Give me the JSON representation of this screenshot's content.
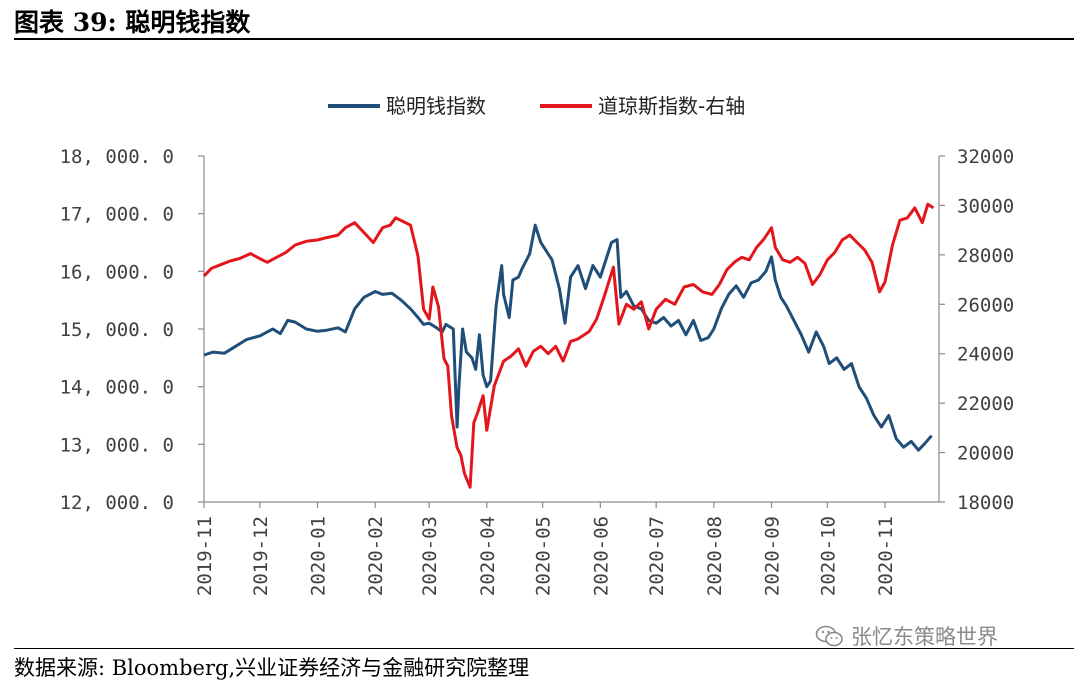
{
  "header": {
    "title": "图表 39:  聪明钱指数"
  },
  "footer": {
    "source": "数据来源:  Bloomberg,兴业证券经济与金融研究院整理",
    "watermark": "张忆东策略世界"
  },
  "colors": {
    "smart_money": "#1f4e79",
    "dow": "#e3161b",
    "axis": "#8c8c8c"
  },
  "chart_data": {
    "type": "line",
    "title": "",
    "legend_position": "top-center",
    "grid": false,
    "x_ticks": [
      "2019-11",
      "2019-12",
      "2020-01",
      "2020-02",
      "2020-03",
      "2020-04",
      "2020-05",
      "2020-06",
      "2020-07",
      "2020-08",
      "2020-09",
      "2020-10",
      "2020-11"
    ],
    "left_axis": {
      "ylim": [
        12000,
        18000
      ],
      "ticks": [
        12000,
        13000,
        14000,
        15000,
        16000,
        17000,
        18000
      ],
      "tick_labels": [
        "12, 000. 0",
        "13, 000. 0",
        "14, 000. 0",
        "15, 000. 0",
        "16, 000. 0",
        "17, 000. 0",
        "18, 000. 0"
      ]
    },
    "right_axis": {
      "ylim": [
        18000,
        32000
      ],
      "ticks": [
        18000,
        20000,
        22000,
        24000,
        26000,
        28000,
        30000,
        32000
      ],
      "tick_labels": [
        "18000",
        "20000",
        "22000",
        "24000",
        "26000",
        "28000",
        "30000",
        "32000"
      ]
    },
    "series": [
      {
        "name": "聪明钱指数",
        "axis": "left",
        "color": "#1f4e79",
        "points": [
          [
            "2019-11-01",
            14550
          ],
          [
            "2019-11-06",
            14600
          ],
          [
            "2019-11-12",
            14580
          ],
          [
            "2019-11-18",
            14700
          ],
          [
            "2019-11-24",
            14820
          ],
          [
            "2019-12-01",
            14880
          ],
          [
            "2019-12-08",
            15000
          ],
          [
            "2019-12-12",
            14920
          ],
          [
            "2019-12-16",
            15150
          ],
          [
            "2019-12-20",
            15120
          ],
          [
            "2019-12-26",
            15000
          ],
          [
            "2020-01-01",
            14960
          ],
          [
            "2020-01-06",
            14980
          ],
          [
            "2020-01-12",
            15020
          ],
          [
            "2020-01-16",
            14950
          ],
          [
            "2020-01-21",
            15350
          ],
          [
            "2020-01-26",
            15550
          ],
          [
            "2020-02-01",
            15650
          ],
          [
            "2020-02-05",
            15600
          ],
          [
            "2020-02-10",
            15620
          ],
          [
            "2020-02-15",
            15500
          ],
          [
            "2020-02-20",
            15350
          ],
          [
            "2020-02-24",
            15200
          ],
          [
            "2020-02-27",
            15080
          ],
          [
            "2020-03-01",
            15100
          ],
          [
            "2020-03-05",
            15020
          ],
          [
            "2020-03-08",
            14950
          ],
          [
            "2020-03-10",
            15080
          ],
          [
            "2020-03-14",
            15000
          ],
          [
            "2020-03-16",
            13300
          ],
          [
            "2020-03-17",
            14000
          ],
          [
            "2020-03-19",
            15000
          ],
          [
            "2020-03-21",
            14600
          ],
          [
            "2020-03-24",
            14500
          ],
          [
            "2020-03-26",
            14300
          ],
          [
            "2020-03-28",
            14900
          ],
          [
            "2020-03-30",
            14200
          ],
          [
            "2020-04-01",
            14000
          ],
          [
            "2020-04-03",
            14100
          ],
          [
            "2020-04-06",
            15400
          ],
          [
            "2020-04-09",
            16100
          ],
          [
            "2020-04-10",
            15600
          ],
          [
            "2020-04-13",
            15200
          ],
          [
            "2020-04-15",
            15850
          ],
          [
            "2020-04-18",
            15900
          ],
          [
            "2020-04-20",
            16050
          ],
          [
            "2020-04-24",
            16300
          ],
          [
            "2020-04-27",
            16800
          ],
          [
            "2020-04-30",
            16500
          ],
          [
            "2020-05-03",
            16350
          ],
          [
            "2020-05-06",
            16200
          ],
          [
            "2020-05-10",
            15700
          ],
          [
            "2020-05-13",
            15100
          ],
          [
            "2020-05-16",
            15900
          ],
          [
            "2020-05-20",
            16100
          ],
          [
            "2020-05-24",
            15700
          ],
          [
            "2020-05-28",
            16100
          ],
          [
            "2020-06-01",
            15900
          ],
          [
            "2020-06-04",
            16200
          ],
          [
            "2020-06-07",
            16500
          ],
          [
            "2020-06-10",
            16550
          ],
          [
            "2020-06-12",
            15550
          ],
          [
            "2020-06-15",
            15650
          ],
          [
            "2020-06-19",
            15400
          ],
          [
            "2020-06-23",
            15350
          ],
          [
            "2020-06-27",
            15150
          ],
          [
            "2020-07-01",
            15100
          ],
          [
            "2020-07-05",
            15200
          ],
          [
            "2020-07-09",
            15050
          ],
          [
            "2020-07-13",
            15150
          ],
          [
            "2020-07-17",
            14900
          ],
          [
            "2020-07-21",
            15150
          ],
          [
            "2020-07-25",
            14800
          ],
          [
            "2020-07-29",
            14850
          ],
          [
            "2020-08-01",
            15000
          ],
          [
            "2020-08-05",
            15350
          ],
          [
            "2020-08-09",
            15600
          ],
          [
            "2020-08-13",
            15750
          ],
          [
            "2020-08-17",
            15550
          ],
          [
            "2020-08-21",
            15800
          ],
          [
            "2020-08-25",
            15850
          ],
          [
            "2020-08-29",
            16000
          ],
          [
            "2020-09-01",
            16250
          ],
          [
            "2020-09-03",
            15850
          ],
          [
            "2020-09-06",
            15550
          ],
          [
            "2020-09-09",
            15400
          ],
          [
            "2020-09-13",
            15150
          ],
          [
            "2020-09-17",
            14900
          ],
          [
            "2020-09-21",
            14600
          ],
          [
            "2020-09-25",
            14950
          ],
          [
            "2020-09-29",
            14700
          ],
          [
            "2020-10-02",
            14400
          ],
          [
            "2020-10-06",
            14500
          ],
          [
            "2020-10-10",
            14300
          ],
          [
            "2020-10-14",
            14400
          ],
          [
            "2020-10-18",
            14000
          ],
          [
            "2020-10-22",
            13800
          ],
          [
            "2020-10-26",
            13500
          ],
          [
            "2020-10-30",
            13300
          ],
          [
            "2020-11-03",
            13500
          ],
          [
            "2020-11-07",
            13100
          ],
          [
            "2020-11-11",
            12950
          ],
          [
            "2020-11-15",
            13050
          ],
          [
            "2020-11-19",
            12900
          ],
          [
            "2020-11-22",
            13000
          ],
          [
            "2020-11-26",
            13150
          ]
        ]
      },
      {
        "name": "道琼斯指数-右轴",
        "axis": "right",
        "color": "#e3161b",
        "points": [
          [
            "2019-11-01",
            27150
          ],
          [
            "2019-11-05",
            27450
          ],
          [
            "2019-11-10",
            27600
          ],
          [
            "2019-11-15",
            27750
          ],
          [
            "2019-11-20",
            27850
          ],
          [
            "2019-11-26",
            28050
          ],
          [
            "2019-12-01",
            27850
          ],
          [
            "2019-12-05",
            27700
          ],
          [
            "2019-12-10",
            27900
          ],
          [
            "2019-12-15",
            28100
          ],
          [
            "2019-12-20",
            28400
          ],
          [
            "2019-12-26",
            28550
          ],
          [
            "2020-01-01",
            28600
          ],
          [
            "2020-01-06",
            28700
          ],
          [
            "2020-01-12",
            28800
          ],
          [
            "2020-01-16",
            29100
          ],
          [
            "2020-01-21",
            29300
          ],
          [
            "2020-01-26",
            28900
          ],
          [
            "2020-01-31",
            28500
          ],
          [
            "2020-02-05",
            29100
          ],
          [
            "2020-02-09",
            29200
          ],
          [
            "2020-02-12",
            29500
          ],
          [
            "2020-02-16",
            29350
          ],
          [
            "2020-02-20",
            29200
          ],
          [
            "2020-02-24",
            27950
          ],
          [
            "2020-02-27",
            25800
          ],
          [
            "2020-03-01",
            25400
          ],
          [
            "2020-03-03",
            26700
          ],
          [
            "2020-03-06",
            25900
          ],
          [
            "2020-03-09",
            23800
          ],
          [
            "2020-03-11",
            23500
          ],
          [
            "2020-03-13",
            21500
          ],
          [
            "2020-03-16",
            20200
          ],
          [
            "2020-03-18",
            19900
          ],
          [
            "2020-03-20",
            19150
          ],
          [
            "2020-03-23",
            18600
          ],
          [
            "2020-03-25",
            21200
          ],
          [
            "2020-03-27",
            21600
          ],
          [
            "2020-03-30",
            22300
          ],
          [
            "2020-04-01",
            20900
          ],
          [
            "2020-04-05",
            22700
          ],
          [
            "2020-04-10",
            23700
          ],
          [
            "2020-04-14",
            23900
          ],
          [
            "2020-04-18",
            24200
          ],
          [
            "2020-04-22",
            23500
          ],
          [
            "2020-04-26",
            24100
          ],
          [
            "2020-04-30",
            24300
          ],
          [
            "2020-05-04",
            24000
          ],
          [
            "2020-05-08",
            24300
          ],
          [
            "2020-05-12",
            23700
          ],
          [
            "2020-05-16",
            24500
          ],
          [
            "2020-05-20",
            24600
          ],
          [
            "2020-05-26",
            24900
          ],
          [
            "2020-05-30",
            25400
          ],
          [
            "2020-06-03",
            26300
          ],
          [
            "2020-06-08",
            27500
          ],
          [
            "2020-06-11",
            25200
          ],
          [
            "2020-06-15",
            26000
          ],
          [
            "2020-06-19",
            25800
          ],
          [
            "2020-06-23",
            26100
          ],
          [
            "2020-06-27",
            25000
          ],
          [
            "2020-07-01",
            25800
          ],
          [
            "2020-07-06",
            26200
          ],
          [
            "2020-07-11",
            26000
          ],
          [
            "2020-07-16",
            26700
          ],
          [
            "2020-07-21",
            26800
          ],
          [
            "2020-07-26",
            26500
          ],
          [
            "2020-07-31",
            26400
          ],
          [
            "2020-08-04",
            26800
          ],
          [
            "2020-08-08",
            27400
          ],
          [
            "2020-08-12",
            27700
          ],
          [
            "2020-08-16",
            27900
          ],
          [
            "2020-08-20",
            27800
          ],
          [
            "2020-08-24",
            28300
          ],
          [
            "2020-08-28",
            28650
          ],
          [
            "2020-09-01",
            29100
          ],
          [
            "2020-09-03",
            28300
          ],
          [
            "2020-09-07",
            27800
          ],
          [
            "2020-09-11",
            27700
          ],
          [
            "2020-09-15",
            27900
          ],
          [
            "2020-09-19",
            27650
          ],
          [
            "2020-09-23",
            26800
          ],
          [
            "2020-09-27",
            27200
          ],
          [
            "2020-10-01",
            27800
          ],
          [
            "2020-10-05",
            28100
          ],
          [
            "2020-10-09",
            28600
          ],
          [
            "2020-10-13",
            28800
          ],
          [
            "2020-10-17",
            28500
          ],
          [
            "2020-10-21",
            28200
          ],
          [
            "2020-10-25",
            27700
          ],
          [
            "2020-10-29",
            26500
          ],
          [
            "2020-11-01",
            26900
          ],
          [
            "2020-11-05",
            28400
          ],
          [
            "2020-11-09",
            29400
          ],
          [
            "2020-11-13",
            29500
          ],
          [
            "2020-11-17",
            29900
          ],
          [
            "2020-11-21",
            29300
          ],
          [
            "2020-11-24",
            30050
          ],
          [
            "2020-11-27",
            29900
          ]
        ]
      }
    ]
  }
}
